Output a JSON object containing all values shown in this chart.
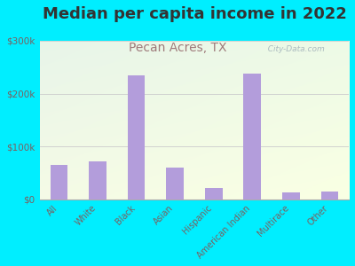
{
  "title": "Median per capita income in 2022",
  "subtitle": "Pecan Acres, TX",
  "categories": [
    "All",
    "White",
    "Black",
    "Asian",
    "Hispanic",
    "American Indian",
    "Multirace",
    "Other"
  ],
  "values": [
    65000,
    72000,
    235000,
    60000,
    22000,
    238000,
    12000,
    15000
  ],
  "bar_color": "#b39ddb",
  "background_outer": "#00eeff",
  "title_color": "#333333",
  "subtitle_color": "#9e7a7a",
  "tick_label_color": "#7a6060",
  "ylim": [
    0,
    300000
  ],
  "yticks": [
    0,
    100000,
    200000,
    300000
  ],
  "ytick_labels": [
    "$0",
    "$100k",
    "$200k",
    "$300k"
  ],
  "watermark": "  City-Data.com",
  "title_fontsize": 13,
  "subtitle_fontsize": 10,
  "grad_top": "#e8f5e9",
  "grad_bottom": "#f5f9e8"
}
